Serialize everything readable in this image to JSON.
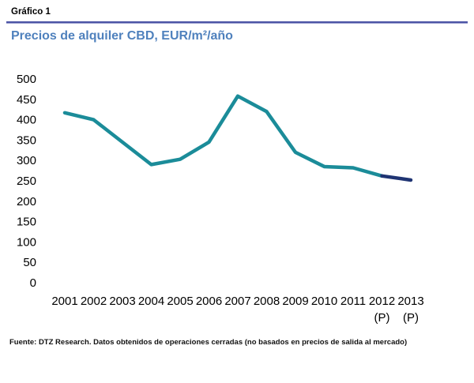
{
  "header": {
    "label": "Gráfico 1"
  },
  "title": "Precios de alquiler CBD, EUR/m²/año",
  "footer": "Fuente: DTZ Research. Datos obtenidos de operaciones cerradas (no basados en precios de salida al mercado)",
  "colors": {
    "title": "#4F81BD",
    "header_rule": "#4C55A5",
    "line_actual": "#1B8C99",
    "line_provisional": "#1F3473",
    "axis_text": "#000000"
  },
  "chart_data": {
    "type": "line",
    "title": "Precios de alquiler CBD, EUR/m²/año",
    "xlabel": "",
    "ylabel": "",
    "x_labels": [
      "2001",
      "2002",
      "2003",
      "2004",
      "2005",
      "2006",
      "2007",
      "2008",
      "2009",
      "2010",
      "2011",
      "2012",
      "2013"
    ],
    "provisional_note": "(P)",
    "provisional_years": [
      "2012",
      "2013"
    ],
    "provisional_from_index": 11,
    "series": [
      {
        "name": "Precios de alquiler CBD (EUR/m²/año)",
        "values": [
          417,
          400,
          345,
          290,
          303,
          345,
          458,
          420,
          320,
          285,
          282,
          262,
          252
        ]
      }
    ],
    "ylim": [
      0,
      500
    ],
    "ytick_step": 50,
    "grid": false,
    "legend": "none"
  }
}
